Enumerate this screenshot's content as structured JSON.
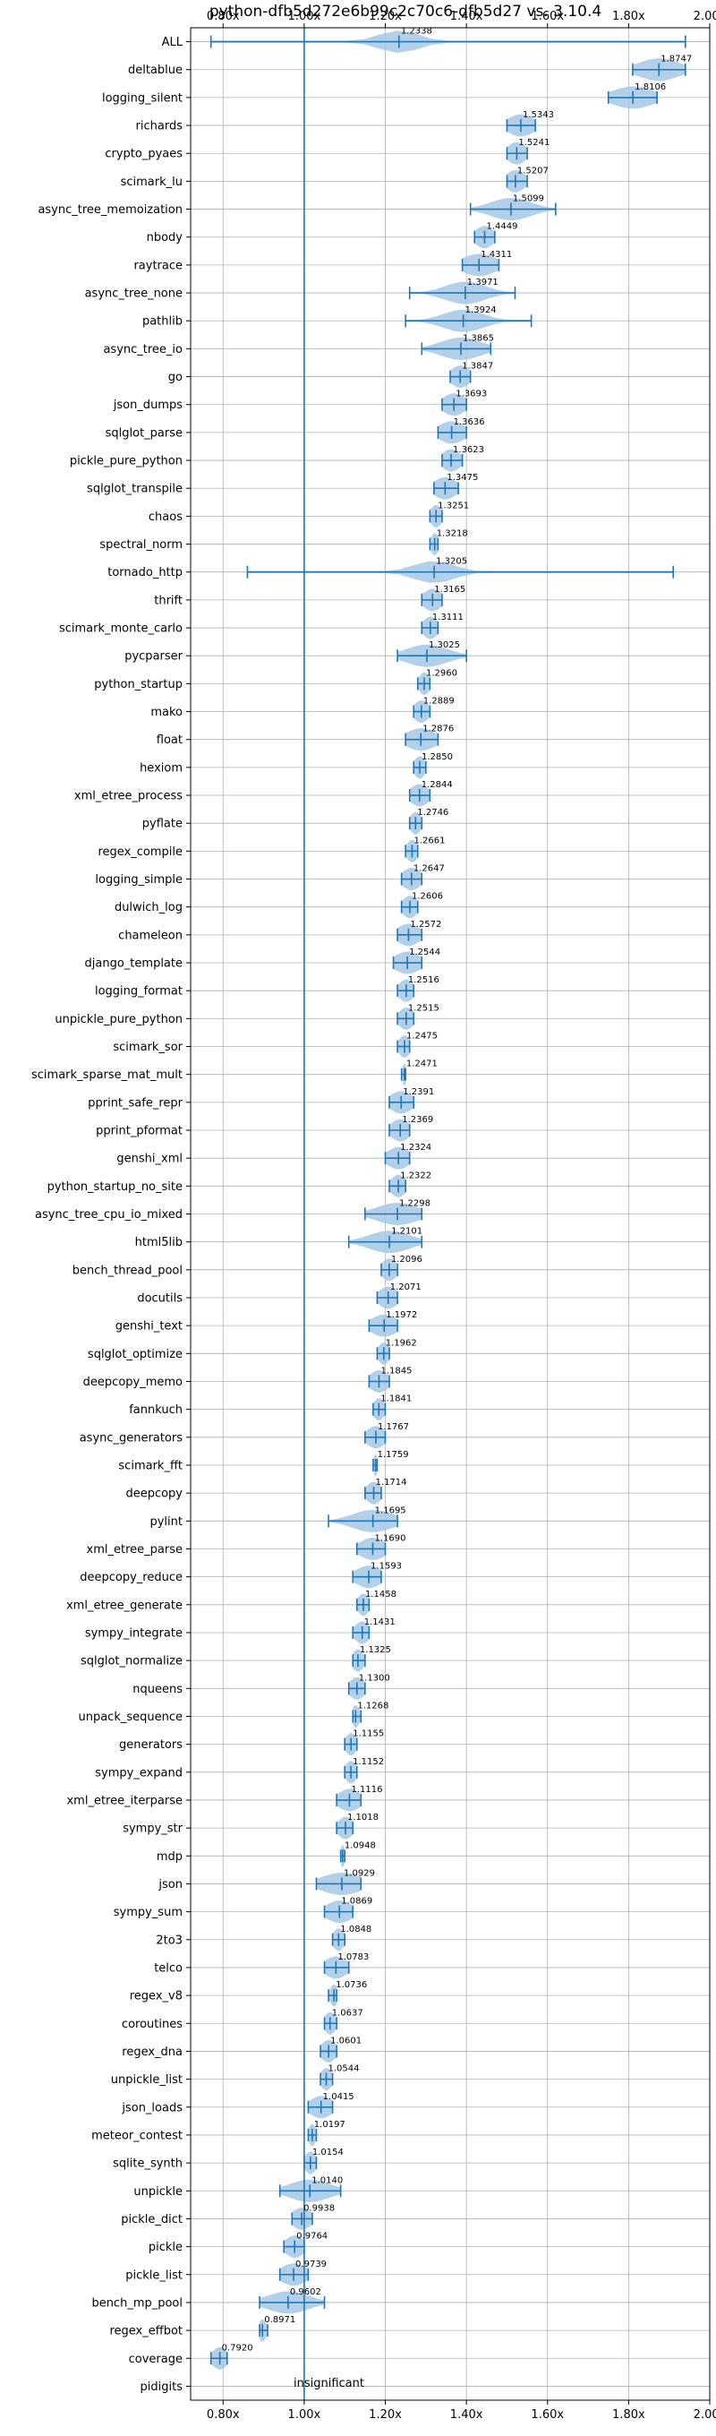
{
  "chart_data": {
    "type": "violin",
    "title": "python-dfb5d272e6b99c2c70c6-dfb5d27 vs. 3.10.4",
    "xlim": [
      0.72,
      2.0
    ],
    "x_ticks": [
      "0.80x",
      "1.00x",
      "1.20x",
      "1.40x",
      "1.60x",
      "1.80x",
      "2.00x"
    ],
    "x_tick_values": [
      0.8,
      1.0,
      1.2,
      1.4,
      1.6,
      1.8,
      2.0
    ],
    "reference_line": 1.0,
    "reference_label": "insignificant",
    "grid": true,
    "colors": {
      "accent": "#1f77b4",
      "violin": "#a6c8e6",
      "grid": "#b0b0b0"
    },
    "benchmarks": [
      {
        "name": "ALL",
        "value": 1.2338,
        "label": "1.2338",
        "min": 0.77,
        "max": 1.94,
        "spread": 0.05
      },
      {
        "name": "deltablue",
        "value": 1.8747,
        "label": "1.8747",
        "min": 1.81,
        "max": 1.94,
        "spread": 0.05
      },
      {
        "name": "logging_silent",
        "value": 1.8106,
        "label": "1.8106",
        "min": 1.75,
        "max": 1.87,
        "spread": 0.05
      },
      {
        "name": "richards",
        "value": 1.5343,
        "label": "1.5343",
        "min": 1.5,
        "max": 1.57,
        "spread": 0.05
      },
      {
        "name": "crypto_pyaes",
        "value": 1.5241,
        "label": "1.5241",
        "min": 1.5,
        "max": 1.55,
        "spread": 0.05
      },
      {
        "name": "scimark_lu",
        "value": 1.5207,
        "label": "1.5207",
        "min": 1.5,
        "max": 1.55,
        "spread": 0.05
      },
      {
        "name": "async_tree_memoization",
        "value": 1.5099,
        "label": "1.5099",
        "min": 1.41,
        "max": 1.62,
        "spread": 0.05
      },
      {
        "name": "nbody",
        "value": 1.4449,
        "label": "1.4449",
        "min": 1.42,
        "max": 1.47,
        "spread": 0.05
      },
      {
        "name": "raytrace",
        "value": 1.4311,
        "label": "1.4311",
        "min": 1.39,
        "max": 1.48,
        "spread": 0.05
      },
      {
        "name": "async_tree_none",
        "value": 1.3971,
        "label": "1.3971",
        "min": 1.26,
        "max": 1.52,
        "spread": 0.05
      },
      {
        "name": "pathlib",
        "value": 1.3924,
        "label": "1.3924",
        "min": 1.25,
        "max": 1.56,
        "spread": 0.05
      },
      {
        "name": "async_tree_io",
        "value": 1.3865,
        "label": "1.3865",
        "min": 1.29,
        "max": 1.46,
        "spread": 0.05
      },
      {
        "name": "go",
        "value": 1.3847,
        "label": "1.3847",
        "min": 1.36,
        "max": 1.41,
        "spread": 0.05
      },
      {
        "name": "json_dumps",
        "value": 1.3693,
        "label": "1.3693",
        "min": 1.34,
        "max": 1.4,
        "spread": 0.05
      },
      {
        "name": "sqlglot_parse",
        "value": 1.3636,
        "label": "1.3636",
        "min": 1.33,
        "max": 1.4,
        "spread": 0.05
      },
      {
        "name": "pickle_pure_python",
        "value": 1.3623,
        "label": "1.3623",
        "min": 1.34,
        "max": 1.39,
        "spread": 0.05
      },
      {
        "name": "sqlglot_transpile",
        "value": 1.3475,
        "label": "1.3475",
        "min": 1.32,
        "max": 1.38,
        "spread": 0.05
      },
      {
        "name": "chaos",
        "value": 1.3251,
        "label": "1.3251",
        "min": 1.31,
        "max": 1.34,
        "spread": 0.05
      },
      {
        "name": "spectral_norm",
        "value": 1.3218,
        "label": "1.3218",
        "min": 1.31,
        "max": 1.33,
        "spread": 0.05
      },
      {
        "name": "tornado_http",
        "value": 1.3205,
        "label": "1.3205",
        "min": 0.86,
        "max": 1.91,
        "spread": 0.05
      },
      {
        "name": "thrift",
        "value": 1.3165,
        "label": "1.3165",
        "min": 1.29,
        "max": 1.34,
        "spread": 0.05
      },
      {
        "name": "scimark_monte_carlo",
        "value": 1.3111,
        "label": "1.3111",
        "min": 1.29,
        "max": 1.33,
        "spread": 0.05
      },
      {
        "name": "pycparser",
        "value": 1.3025,
        "label": "1.3025",
        "min": 1.23,
        "max": 1.4,
        "spread": 0.05
      },
      {
        "name": "python_startup",
        "value": 1.296,
        "label": "1.2960",
        "min": 1.28,
        "max": 1.31,
        "spread": 0.05
      },
      {
        "name": "mako",
        "value": 1.2889,
        "label": "1.2889",
        "min": 1.27,
        "max": 1.31,
        "spread": 0.05
      },
      {
        "name": "float",
        "value": 1.2876,
        "label": "1.2876",
        "min": 1.25,
        "max": 1.33,
        "spread": 0.05
      },
      {
        "name": "hexiom",
        "value": 1.285,
        "label": "1.2850",
        "min": 1.27,
        "max": 1.3,
        "spread": 0.05
      },
      {
        "name": "xml_etree_process",
        "value": 1.2844,
        "label": "1.2844",
        "min": 1.26,
        "max": 1.31,
        "spread": 0.05
      },
      {
        "name": "pyflate",
        "value": 1.2746,
        "label": "1.2746",
        "min": 1.26,
        "max": 1.29,
        "spread": 0.05
      },
      {
        "name": "regex_compile",
        "value": 1.2661,
        "label": "1.2661",
        "min": 1.25,
        "max": 1.28,
        "spread": 0.05
      },
      {
        "name": "logging_simple",
        "value": 1.2647,
        "label": "1.2647",
        "min": 1.24,
        "max": 1.29,
        "spread": 0.05
      },
      {
        "name": "dulwich_log",
        "value": 1.2606,
        "label": "1.2606",
        "min": 1.24,
        "max": 1.28,
        "spread": 0.05
      },
      {
        "name": "chameleon",
        "value": 1.2572,
        "label": "1.2572",
        "min": 1.23,
        "max": 1.29,
        "spread": 0.05
      },
      {
        "name": "django_template",
        "value": 1.2544,
        "label": "1.2544",
        "min": 1.22,
        "max": 1.29,
        "spread": 0.05
      },
      {
        "name": "logging_format",
        "value": 1.2516,
        "label": "1.2516",
        "min": 1.23,
        "max": 1.27,
        "spread": 0.05
      },
      {
        "name": "unpickle_pure_python",
        "value": 1.2515,
        "label": "1.2515",
        "min": 1.23,
        "max": 1.27,
        "spread": 0.05
      },
      {
        "name": "scimark_sor",
        "value": 1.2475,
        "label": "1.2475",
        "min": 1.23,
        "max": 1.26,
        "spread": 0.05
      },
      {
        "name": "scimark_sparse_mat_mult",
        "value": 1.2471,
        "label": "1.2471",
        "min": 1.24,
        "max": 1.25,
        "spread": 0.05
      },
      {
        "name": "pprint_safe_repr",
        "value": 1.2391,
        "label": "1.2391",
        "min": 1.21,
        "max": 1.27,
        "spread": 0.05
      },
      {
        "name": "pprint_pformat",
        "value": 1.2369,
        "label": "1.2369",
        "min": 1.21,
        "max": 1.26,
        "spread": 0.05
      },
      {
        "name": "genshi_xml",
        "value": 1.2324,
        "label": "1.2324",
        "min": 1.2,
        "max": 1.26,
        "spread": 0.05
      },
      {
        "name": "python_startup_no_site",
        "value": 1.2322,
        "label": "1.2322",
        "min": 1.21,
        "max": 1.25,
        "spread": 0.05
      },
      {
        "name": "async_tree_cpu_io_mixed",
        "value": 1.2298,
        "label": "1.2298",
        "min": 1.15,
        "max": 1.29,
        "spread": 0.05
      },
      {
        "name": "html5lib",
        "value": 1.2101,
        "label": "1.2101",
        "min": 1.11,
        "max": 1.29,
        "spread": 0.05
      },
      {
        "name": "bench_thread_pool",
        "value": 1.2096,
        "label": "1.2096",
        "min": 1.19,
        "max": 1.23,
        "spread": 0.05
      },
      {
        "name": "docutils",
        "value": 1.2071,
        "label": "1.2071",
        "min": 1.18,
        "max": 1.23,
        "spread": 0.05
      },
      {
        "name": "genshi_text",
        "value": 1.1972,
        "label": "1.1972",
        "min": 1.16,
        "max": 1.23,
        "spread": 0.05
      },
      {
        "name": "sqlglot_optimize",
        "value": 1.1962,
        "label": "1.1962",
        "min": 1.18,
        "max": 1.21,
        "spread": 0.05
      },
      {
        "name": "deepcopy_memo",
        "value": 1.1845,
        "label": "1.1845",
        "min": 1.16,
        "max": 1.21,
        "spread": 0.05
      },
      {
        "name": "fannkuch",
        "value": 1.1841,
        "label": "1.1841",
        "min": 1.17,
        "max": 1.2,
        "spread": 0.05
      },
      {
        "name": "async_generators",
        "value": 1.1767,
        "label": "1.1767",
        "min": 1.15,
        "max": 1.2,
        "spread": 0.05
      },
      {
        "name": "scimark_fft",
        "value": 1.1759,
        "label": "1.1759",
        "min": 1.17,
        "max": 1.18,
        "spread": 0.05
      },
      {
        "name": "deepcopy",
        "value": 1.1714,
        "label": "1.1714",
        "min": 1.15,
        "max": 1.19,
        "spread": 0.05
      },
      {
        "name": "pylint",
        "value": 1.1695,
        "label": "1.1695",
        "min": 1.06,
        "max": 1.23,
        "spread": 0.05
      },
      {
        "name": "xml_etree_parse",
        "value": 1.169,
        "label": "1.1690",
        "min": 1.13,
        "max": 1.2,
        "spread": 0.05
      },
      {
        "name": "deepcopy_reduce",
        "value": 1.1593,
        "label": "1.1593",
        "min": 1.12,
        "max": 1.19,
        "spread": 0.05
      },
      {
        "name": "xml_etree_generate",
        "value": 1.1458,
        "label": "1.1458",
        "min": 1.13,
        "max": 1.16,
        "spread": 0.05
      },
      {
        "name": "sympy_integrate",
        "value": 1.1431,
        "label": "1.1431",
        "min": 1.12,
        "max": 1.16,
        "spread": 0.05
      },
      {
        "name": "sqlglot_normalize",
        "value": 1.1325,
        "label": "1.1325",
        "min": 1.12,
        "max": 1.15,
        "spread": 0.05
      },
      {
        "name": "nqueens",
        "value": 1.13,
        "label": "1.1300",
        "min": 1.11,
        "max": 1.15,
        "spread": 0.05
      },
      {
        "name": "unpack_sequence",
        "value": 1.1268,
        "label": "1.1268",
        "min": 1.12,
        "max": 1.14,
        "spread": 0.05
      },
      {
        "name": "generators",
        "value": 1.1155,
        "label": "1.1155",
        "min": 1.1,
        "max": 1.13,
        "spread": 0.05
      },
      {
        "name": "sympy_expand",
        "value": 1.1152,
        "label": "1.1152",
        "min": 1.1,
        "max": 1.13,
        "spread": 0.05
      },
      {
        "name": "xml_etree_iterparse",
        "value": 1.1116,
        "label": "1.1116",
        "min": 1.08,
        "max": 1.14,
        "spread": 0.05
      },
      {
        "name": "sympy_str",
        "value": 1.1018,
        "label": "1.1018",
        "min": 1.08,
        "max": 1.12,
        "spread": 0.05
      },
      {
        "name": "mdp",
        "value": 1.0948,
        "label": "1.0948",
        "min": 1.09,
        "max": 1.1,
        "spread": 0.05
      },
      {
        "name": "json",
        "value": 1.0929,
        "label": "1.0929",
        "min": 1.03,
        "max": 1.14,
        "spread": 0.05
      },
      {
        "name": "sympy_sum",
        "value": 1.0869,
        "label": "1.0869",
        "min": 1.05,
        "max": 1.12,
        "spread": 0.05
      },
      {
        "name": "2to3",
        "value": 1.0848,
        "label": "1.0848",
        "min": 1.07,
        "max": 1.1,
        "spread": 0.05
      },
      {
        "name": "telco",
        "value": 1.0783,
        "label": "1.0783",
        "min": 1.05,
        "max": 1.11,
        "spread": 0.05
      },
      {
        "name": "regex_v8",
        "value": 1.0736,
        "label": "1.0736",
        "min": 1.06,
        "max": 1.08,
        "spread": 0.05
      },
      {
        "name": "coroutines",
        "value": 1.0637,
        "label": "1.0637",
        "min": 1.05,
        "max": 1.08,
        "spread": 0.05
      },
      {
        "name": "regex_dna",
        "value": 1.0601,
        "label": "1.0601",
        "min": 1.04,
        "max": 1.08,
        "spread": 0.05
      },
      {
        "name": "unpickle_list",
        "value": 1.0544,
        "label": "1.0544",
        "min": 1.04,
        "max": 1.07,
        "spread": 0.05
      },
      {
        "name": "json_loads",
        "value": 1.0415,
        "label": "1.0415",
        "min": 1.01,
        "max": 1.07,
        "spread": 0.05
      },
      {
        "name": "meteor_contest",
        "value": 1.0197,
        "label": "1.0197",
        "min": 1.01,
        "max": 1.03,
        "spread": 0.05
      },
      {
        "name": "sqlite_synth",
        "value": 1.0154,
        "label": "1.0154",
        "min": 1.0,
        "max": 1.03,
        "spread": 0.05
      },
      {
        "name": "unpickle",
        "value": 1.014,
        "label": "1.0140",
        "min": 0.94,
        "max": 1.09,
        "spread": 0.05
      },
      {
        "name": "pickle_dict",
        "value": 0.9938,
        "label": "0.9938",
        "min": 0.97,
        "max": 1.02,
        "spread": 0.05
      },
      {
        "name": "pickle",
        "value": 0.9764,
        "label": "0.9764",
        "min": 0.95,
        "max": 1.0,
        "spread": 0.05
      },
      {
        "name": "pickle_list",
        "value": 0.9739,
        "label": "0.9739",
        "min": 0.94,
        "max": 1.01,
        "spread": 0.05
      },
      {
        "name": "bench_mp_pool",
        "value": 0.9602,
        "label": "0.9602",
        "min": 0.89,
        "max": 1.05,
        "spread": 0.05
      },
      {
        "name": "regex_effbot",
        "value": 0.8971,
        "label": "0.8971",
        "min": 0.89,
        "max": 0.91,
        "spread": 0.05
      },
      {
        "name": "coverage",
        "value": 0.792,
        "label": "0.7920",
        "min": 0.77,
        "max": 0.81,
        "spread": 0.05
      },
      {
        "name": "pidigits",
        "value": null,
        "label": "",
        "min": null,
        "max": null,
        "spread": 0.05
      }
    ]
  }
}
